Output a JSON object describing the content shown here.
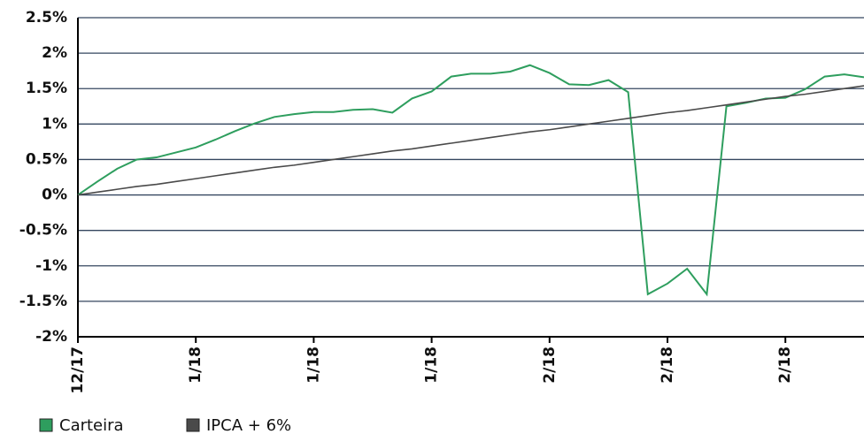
{
  "chart_data": {
    "type": "line",
    "categories": [
      "12/17",
      null,
      null,
      null,
      null,
      null,
      "1/18",
      null,
      null,
      null,
      null,
      null,
      "1/18",
      null,
      null,
      null,
      null,
      null,
      "1/18",
      null,
      null,
      null,
      null,
      null,
      "2/18",
      null,
      null,
      null,
      null,
      null,
      "2/18",
      null,
      null,
      null,
      null,
      null,
      "2/18",
      null,
      null,
      null,
      null
    ],
    "series": [
      {
        "name": "Carteira",
        "color": "#2e9e5e",
        "values": [
          0,
          0.19,
          0.37,
          0.5,
          0.53,
          0.6,
          0.67,
          0.78,
          0.9,
          1.01,
          1.1,
          1.14,
          1.17,
          1.17,
          1.2,
          1.21,
          1.16,
          1.36,
          1.46,
          1.67,
          1.71,
          1.71,
          1.74,
          1.83,
          1.72,
          1.56,
          1.55,
          1.62,
          1.45,
          -1.4,
          -1.25,
          -1.04,
          -1.4,
          1.25,
          1.3,
          1.36,
          1.37,
          1.49,
          1.67,
          1.7,
          1.66
        ]
      },
      {
        "name": "IPCA + 6%",
        "color": "#4a4a4a",
        "values": [
          0,
          0.04,
          0.08,
          0.12,
          0.15,
          0.19,
          0.23,
          0.27,
          0.31,
          0.35,
          0.39,
          0.42,
          0.46,
          0.5,
          0.54,
          0.58,
          0.62,
          0.65,
          0.69,
          0.73,
          0.77,
          0.81,
          0.85,
          0.89,
          0.92,
          0.96,
          1.0,
          1.04,
          1.08,
          1.12,
          1.16,
          1.19,
          1.23,
          1.27,
          1.31,
          1.35,
          1.39,
          1.42,
          1.46,
          1.5,
          1.54
        ]
      }
    ],
    "ylim": [
      -2,
      2.5
    ],
    "yticks": [
      {
        "value": -2,
        "label": "-2%"
      },
      {
        "value": -1.5,
        "label": "-1.5%"
      },
      {
        "value": -1,
        "label": "-1%"
      },
      {
        "value": -0.5,
        "label": "-0.5%"
      },
      {
        "value": 0,
        "label": "0%"
      },
      {
        "value": 0.5,
        "label": "0.5%"
      },
      {
        "value": 1,
        "label": "1%"
      },
      {
        "value": 1.5,
        "label": "1.5%"
      },
      {
        "value": 2,
        "label": "2%"
      },
      {
        "value": 2.5,
        "label": "2.5%"
      }
    ],
    "grid": true
  }
}
